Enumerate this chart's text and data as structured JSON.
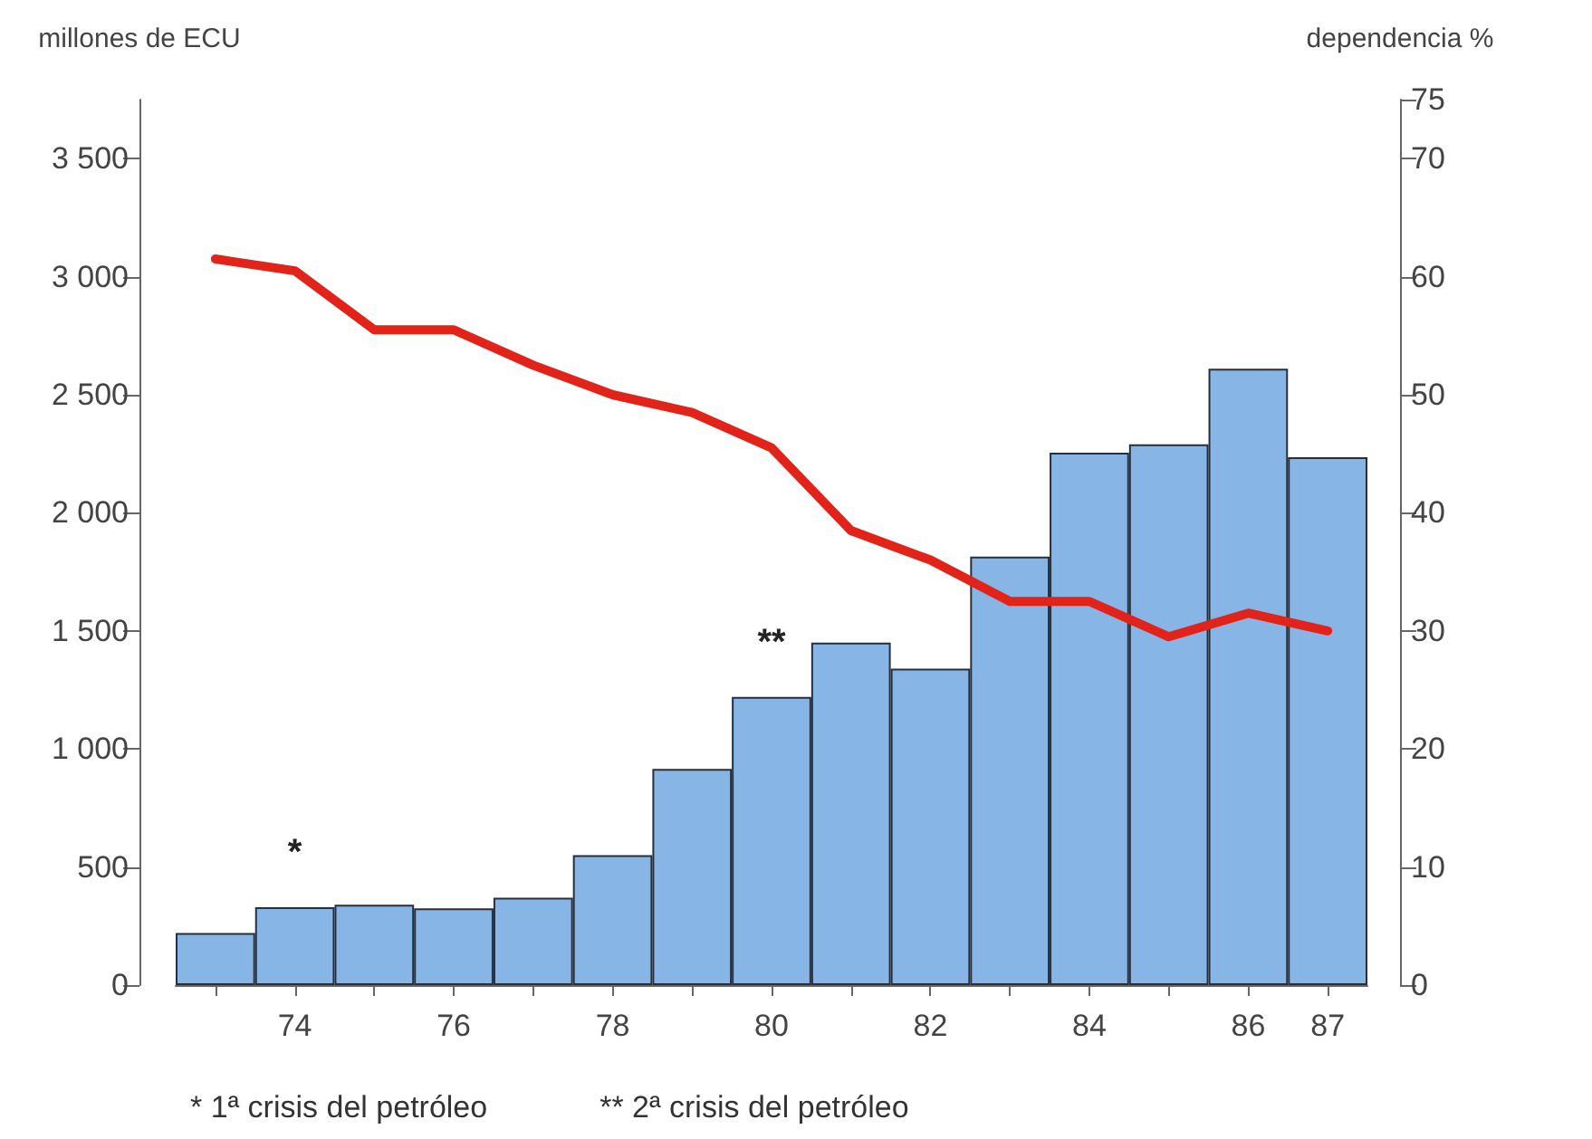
{
  "chart_data": {
    "type": "bar",
    "ylabel": "millones de ECU",
    "y2label": "dependencia %",
    "categories": [
      null,
      "74",
      null,
      "76",
      null,
      "78",
      null,
      "80",
      null,
      "82",
      null,
      "84",
      null,
      "86",
      "87"
    ],
    "series": [
      {
        "color": "#86b5e6",
        "values": [
          220,
          330,
          340,
          325,
          370,
          550,
          915,
          1220,
          1450,
          1340,
          1815,
          2255,
          2290,
          2610,
          2235
        ]
      },
      {
        "type": "line",
        "axis": "y2",
        "color": "#e2231a",
        "values": [
          61.5,
          60.5,
          55.5,
          55.5,
          52.5,
          50,
          48.5,
          45.5,
          38.5,
          36,
          32.5,
          32.5,
          29.5,
          31.5,
          30
        ]
      }
    ],
    "ylim": [
      0,
      3750
    ],
    "yticks": [
      0,
      500,
      {
        "value": 1000,
        "label": "1 000"
      },
      {
        "value": 1500,
        "label": "1 500"
      },
      {
        "value": 2000,
        "label": "2 000"
      },
      {
        "value": 2500,
        "label": "2 500"
      },
      {
        "value": 3000,
        "label": "3 000"
      },
      {
        "value": 3500,
        "label": "3 500"
      }
    ],
    "y2lim": [
      0,
      75
    ],
    "y2ticks": [
      0,
      10,
      20,
      30,
      40,
      50,
      60,
      70,
      75
    ],
    "annotations": [
      {
        "text": "*",
        "x": "74",
        "y": 330
      },
      {
        "text": "**",
        "x": "80",
        "y": 1220
      },
      "* 1ª crisis del petróleo",
      "** 2ª crisis del petróleo"
    ],
    "grid": false,
    "marker": "none",
    "line_style": "solid"
  }
}
